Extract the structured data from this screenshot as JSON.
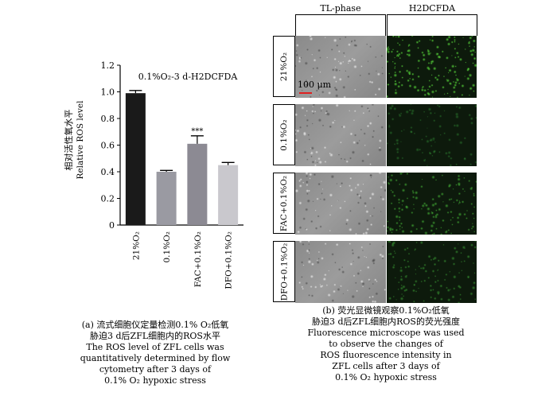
{
  "chart_data": {
    "type": "bar",
    "title": "0.1%O₂-3 d-H2DCFDA",
    "ylabel_cn": "相对活性氧水平",
    "ylabel_en": "Relative ROS level",
    "categories": [
      "21%O₂",
      "0.1%O₂",
      "FAC+0.1%O₂",
      "DFO+0.1%O₂"
    ],
    "values": [
      0.99,
      0.4,
      0.61,
      0.45
    ],
    "errors": [
      0.02,
      0.01,
      0.06,
      0.02
    ],
    "bar_colors": [
      "#1a1a1a",
      "#9a9aa2",
      "#8c8a93",
      "#c9c8cd"
    ],
    "significance": [
      "",
      "",
      "***",
      ""
    ],
    "ylim": [
      0,
      1.2
    ],
    "yticks": [
      "0",
      "0.2",
      "0.4",
      "0.6",
      "0.8",
      "1.0",
      "1.2"
    ]
  },
  "caption_a": {
    "line1": "(a) 流式细胞仪定量检测0.1% O₂低氧",
    "line2": "胁迫3 d后ZFL细胞内的ROS水平",
    "line3": "The ROS level of ZFL cells was",
    "line4": "quantitatively determined by flow",
    "line5": "cytometry after 3 days of",
    "line6": "0.1% O₂ hypoxic stress"
  },
  "microscopy": {
    "col1": "TL-phase",
    "col2": "H2DCFDA",
    "rows": [
      "21%O₂",
      "0.1%O₂",
      "FAC+0.1%O₂",
      "DFO+0.1%O₂"
    ],
    "scale_bar": "100 μm",
    "fluor_levels": [
      0.85,
      0.25,
      0.6,
      0.45
    ]
  },
  "caption_b": {
    "line1": "(b) 荧光显微镜观察0.1%O₂低氧",
    "line2": "胁迫3 d后ZFL细胞内ROS的荧光强度",
    "line3": "Fluorescence microscope was used",
    "line4": "to observe the changes of",
    "line5": "ROS fluorescence intensity in",
    "line6": "ZFL cells after 3 days of",
    "line7": "0.1% O₂ hypoxic stress"
  }
}
